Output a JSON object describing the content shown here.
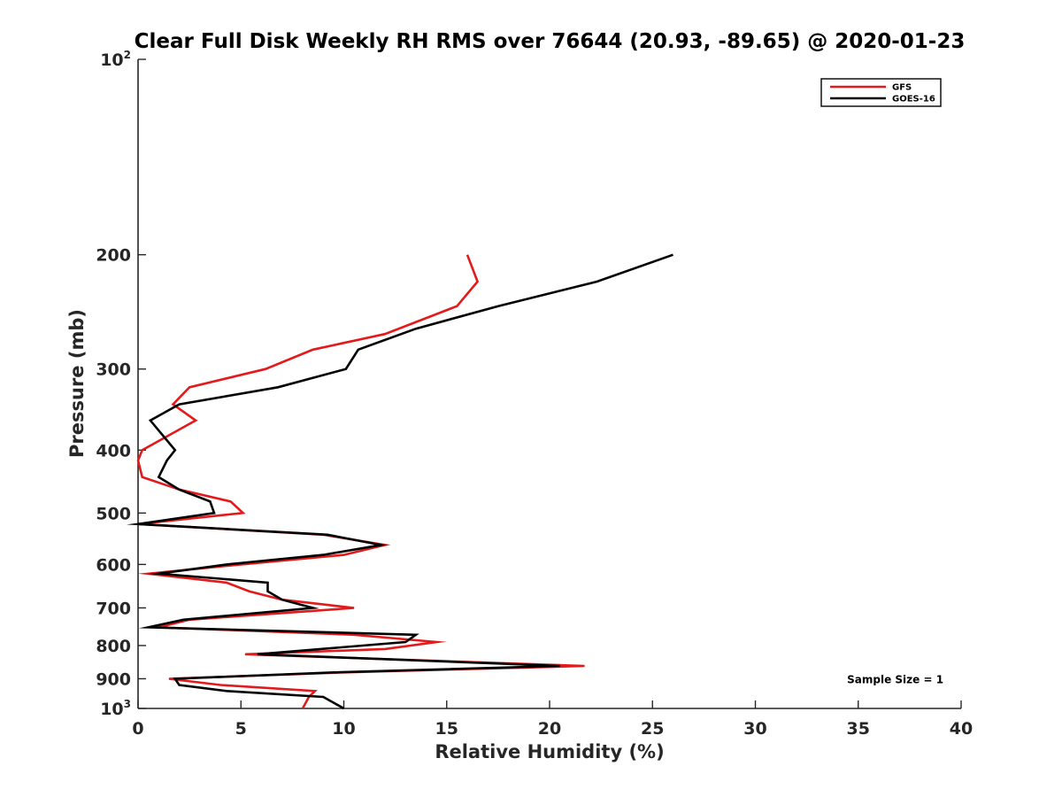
{
  "chart_data": {
    "type": "line",
    "title": "Clear Full Disk Weekly RH RMS over 76644 (20.93, -89.65) @ 2020-01-23",
    "xlabel": "Relative Humidity (%)",
    "ylabel": "Pressure (mb)",
    "xlim": [
      0,
      40
    ],
    "ylim": [
      100,
      1000
    ],
    "yscale": "log",
    "y_reversed": true,
    "grid": false,
    "x_ticks": [
      0,
      5,
      10,
      15,
      20,
      25,
      30,
      35,
      40
    ],
    "x_tick_labels": [
      "0",
      "5",
      "10",
      "15",
      "20",
      "25",
      "30",
      "35",
      "40"
    ],
    "y_ticks": [
      {
        "value": 100,
        "base": "10",
        "exp": "2"
      },
      {
        "value": 200,
        "label": "200"
      },
      {
        "value": 300,
        "label": "300"
      },
      {
        "value": 400,
        "label": "400"
      },
      {
        "value": 500,
        "label": "500"
      },
      {
        "value": 600,
        "label": "600"
      },
      {
        "value": 700,
        "label": "700"
      },
      {
        "value": 800,
        "label": "800"
      },
      {
        "value": 900,
        "label": "900"
      },
      {
        "value": 1000,
        "base": "10",
        "exp": "3"
      }
    ],
    "legend_position": "top-right",
    "series": [
      {
        "name": "GFS",
        "color": "#e31a1c",
        "points": [
          [
            16.0,
            200
          ],
          [
            16.5,
            220
          ],
          [
            15.5,
            240
          ],
          [
            12.0,
            265
          ],
          [
            8.5,
            280
          ],
          [
            6.2,
            300
          ],
          [
            2.5,
            320
          ],
          [
            1.7,
            340
          ],
          [
            2.8,
            360
          ],
          [
            0.2,
            400
          ],
          [
            0.0,
            415
          ],
          [
            0.2,
            440
          ],
          [
            2.0,
            460
          ],
          [
            4.5,
            480
          ],
          [
            5.1,
            500
          ],
          [
            0.0,
            520
          ],
          [
            9.0,
            540
          ],
          [
            12.0,
            560
          ],
          [
            10.0,
            580
          ],
          [
            5.0,
            600
          ],
          [
            0.5,
            620
          ],
          [
            4.3,
            640
          ],
          [
            5.4,
            660
          ],
          [
            7.0,
            680
          ],
          [
            10.5,
            700
          ],
          [
            2.5,
            730
          ],
          [
            1.0,
            750
          ],
          [
            10.5,
            770
          ],
          [
            14.5,
            790
          ],
          [
            12.0,
            810
          ],
          [
            5.2,
            825
          ],
          [
            21.7,
            860
          ],
          [
            10.0,
            880
          ],
          [
            1.5,
            900
          ],
          [
            4.0,
            920
          ],
          [
            8.6,
            940
          ],
          [
            8.3,
            960
          ],
          [
            8.0,
            1000
          ]
        ]
      },
      {
        "name": "GOES-16",
        "color": "#000000",
        "points": [
          [
            26.0,
            200
          ],
          [
            22.3,
            220
          ],
          [
            17.5,
            240
          ],
          [
            13.5,
            260
          ],
          [
            10.7,
            280
          ],
          [
            10.1,
            300
          ],
          [
            6.8,
            320
          ],
          [
            2.0,
            340
          ],
          [
            0.6,
            360
          ],
          [
            1.8,
            400
          ],
          [
            1.4,
            415
          ],
          [
            1.0,
            440
          ],
          [
            2.0,
            460
          ],
          [
            3.5,
            480
          ],
          [
            3.7,
            500
          ],
          [
            0.0,
            520
          ],
          [
            9.2,
            540
          ],
          [
            11.8,
            560
          ],
          [
            9.0,
            580
          ],
          [
            4.3,
            600
          ],
          [
            1.0,
            620
          ],
          [
            6.3,
            640
          ],
          [
            6.3,
            660
          ],
          [
            7.0,
            680
          ],
          [
            8.5,
            700
          ],
          [
            2.2,
            730
          ],
          [
            0.5,
            750
          ],
          [
            13.5,
            770
          ],
          [
            13.0,
            790
          ],
          [
            5.8,
            825
          ],
          [
            20.5,
            860
          ],
          [
            9.5,
            880
          ],
          [
            1.8,
            900
          ],
          [
            2.0,
            920
          ],
          [
            4.3,
            940
          ],
          [
            9.0,
            960
          ],
          [
            10.0,
            1000
          ]
        ]
      }
    ],
    "annotations": [
      {
        "text": "Sample Size = 1",
        "x": 36.8,
        "y": 900
      }
    ]
  }
}
